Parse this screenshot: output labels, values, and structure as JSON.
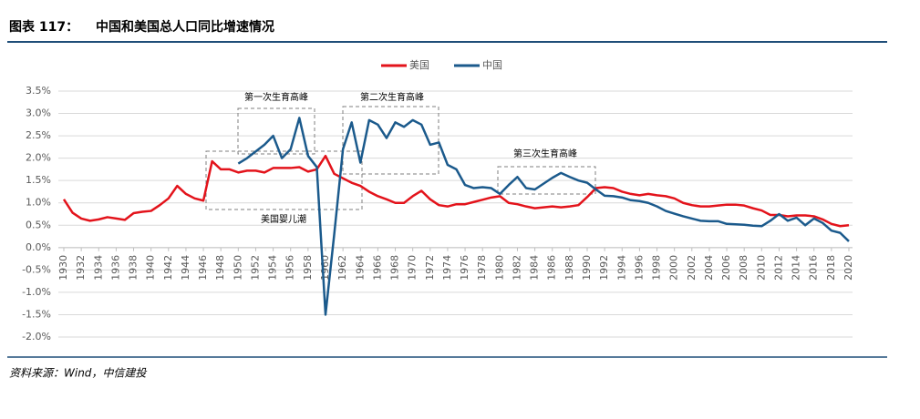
{
  "chart_data": {
    "type": "line",
    "figure_label": "图表 117：",
    "title": "中国和美国总人口同比增速情况",
    "source": "资料来源：Wind，中信建投",
    "annotations": [
      "第一次生育高峰",
      "第二次生育高峰",
      "第三次生育高峰",
      "美国婴儿潮"
    ],
    "x": [
      1930,
      1931,
      1932,
      1933,
      1934,
      1935,
      1936,
      1937,
      1938,
      1939,
      1940,
      1941,
      1942,
      1943,
      1944,
      1945,
      1946,
      1947,
      1948,
      1949,
      1950,
      1951,
      1952,
      1953,
      1954,
      1955,
      1956,
      1957,
      1958,
      1959,
      1960,
      1961,
      1962,
      1963,
      1964,
      1965,
      1966,
      1967,
      1968,
      1969,
      1970,
      1971,
      1972,
      1973,
      1974,
      1975,
      1976,
      1977,
      1978,
      1979,
      1980,
      1981,
      1982,
      1983,
      1984,
      1985,
      1986,
      1987,
      1988,
      1989,
      1990,
      1991,
      1992,
      1993,
      1994,
      1995,
      1996,
      1997,
      1998,
      1999,
      2000,
      2001,
      2002,
      2003,
      2004,
      2005,
      2006,
      2007,
      2008,
      2009,
      2010,
      2011,
      2012,
      2013,
      2014,
      2015,
      2016,
      2017,
      2018,
      2019,
      2020
    ],
    "series": [
      {
        "name": "美国",
        "color": "#e3131b",
        "values": [
          1.08,
          0.78,
          0.65,
          0.6,
          0.63,
          0.68,
          0.65,
          0.62,
          0.77,
          0.8,
          0.82,
          0.95,
          1.1,
          1.38,
          1.2,
          1.1,
          1.05,
          1.93,
          1.75,
          1.75,
          1.68,
          1.72,
          1.72,
          1.68,
          1.78,
          1.78,
          1.78,
          1.8,
          1.7,
          1.75,
          2.05,
          1.65,
          1.55,
          1.45,
          1.38,
          1.25,
          1.15,
          1.08,
          1.0,
          1.0,
          1.15,
          1.27,
          1.08,
          0.95,
          0.92,
          0.97,
          0.97,
          1.02,
          1.07,
          1.12,
          1.15,
          1.0,
          0.97,
          0.92,
          0.88,
          0.9,
          0.92,
          0.9,
          0.92,
          0.95,
          1.13,
          1.33,
          1.35,
          1.33,
          1.25,
          1.2,
          1.17,
          1.2,
          1.17,
          1.15,
          1.1,
          1.0,
          0.95,
          0.92,
          0.92,
          0.94,
          0.96,
          0.96,
          0.94,
          0.88,
          0.83,
          0.73,
          0.73,
          0.7,
          0.72,
          0.72,
          0.7,
          0.63,
          0.53,
          0.48,
          0.5
        ]
      },
      {
        "name": "中国",
        "color": "#1b5a8c",
        "values": [
          null,
          null,
          null,
          null,
          null,
          null,
          null,
          null,
          null,
          null,
          null,
          null,
          null,
          null,
          null,
          null,
          null,
          null,
          null,
          null,
          1.88,
          2.0,
          2.15,
          2.3,
          2.5,
          2.0,
          2.2,
          2.9,
          2.05,
          1.8,
          -1.5,
          0.3,
          2.2,
          2.8,
          1.9,
          2.85,
          2.75,
          2.45,
          2.8,
          2.7,
          2.85,
          2.75,
          2.3,
          2.35,
          1.85,
          1.75,
          1.4,
          1.33,
          1.35,
          1.33,
          1.2,
          1.4,
          1.58,
          1.33,
          1.3,
          1.43,
          1.56,
          1.67,
          1.58,
          1.5,
          1.45,
          1.3,
          1.16,
          1.15,
          1.12,
          1.06,
          1.04,
          1.0,
          0.92,
          0.82,
          0.76,
          0.7,
          0.65,
          0.6,
          0.59,
          0.59,
          0.53,
          0.52,
          0.51,
          0.49,
          0.48,
          0.6,
          0.75,
          0.6,
          0.67,
          0.5,
          0.65,
          0.55,
          0.38,
          0.33,
          0.14
        ]
      }
    ],
    "xlim": [
      1930,
      2020
    ],
    "xticks": [
      1930,
      1932,
      1934,
      1936,
      1938,
      1940,
      1942,
      1944,
      1946,
      1948,
      1950,
      1952,
      1954,
      1956,
      1958,
      1960,
      1962,
      1964,
      1966,
      1968,
      1970,
      1972,
      1974,
      1976,
      1978,
      1980,
      1982,
      1984,
      1986,
      1988,
      1990,
      1992,
      1994,
      1996,
      1998,
      2000,
      2002,
      2004,
      2006,
      2008,
      2010,
      2012,
      2014,
      2016,
      2018,
      2020
    ],
    "ylim": [
      -2.0,
      3.5
    ],
    "yticks": [
      {
        "value": -2.0,
        "label": "-2.0%"
      },
      {
        "value": -1.5,
        "label": "-1.5%"
      },
      {
        "value": -1.0,
        "label": "-1.0%"
      },
      {
        "value": -0.5,
        "label": "-0.5%"
      },
      {
        "value": 0,
        "label": "0.0%"
      },
      {
        "value": 0.5,
        "label": "0.5%"
      },
      {
        "value": 1.0,
        "label": "1.0%"
      },
      {
        "value": 1.5,
        "label": "1.5%"
      },
      {
        "value": 2.0,
        "label": "2.0%"
      },
      {
        "value": 2.5,
        "label": "2.5%"
      },
      {
        "value": 3.0,
        "label": "3.0%"
      },
      {
        "value": 3.5,
        "label": "3.5%"
      }
    ],
    "grid": true,
    "legend": "top"
  }
}
